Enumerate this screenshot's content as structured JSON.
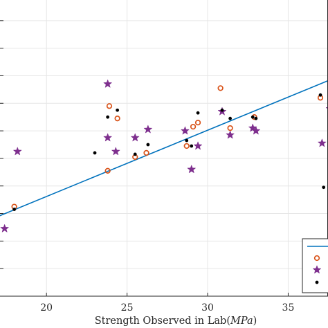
{
  "chart_data": {
    "type": "scatter",
    "title": "",
    "xlabel": "Strength Observed in Lab",
    "xlabel_unit": "MPa",
    "ylabel": "",
    "xlim": [
      16.6,
      37.6
    ],
    "ylim": [
      10.0,
      32.0
    ],
    "x_ticks": [
      20,
      25,
      30,
      35
    ],
    "x_tick_labels": [
      "20",
      "25",
      "30",
      "35"
    ],
    "y_ticks": [
      12,
      14,
      16,
      18,
      20,
      22,
      24,
      26,
      28,
      30
    ],
    "grid": true,
    "legend_placement": "bottom-right",
    "colors": {
      "line": "#0072BD",
      "circles": "#D95319",
      "stars": "#7E2F8E",
      "dots": "#000000",
      "grid": "#e6e6e6",
      "axes": "#262626"
    },
    "fit_line": {
      "name": "",
      "x": [
        16.6,
        37.6
      ],
      "y": [
        15.6,
        25.7
      ]
    },
    "series": [
      {
        "marker": "circle",
        "x": [
          18.0,
          23.8,
          24.4,
          23.9,
          25.5,
          26.2,
          28.7,
          29.1,
          29.4,
          30.8,
          31.4,
          32.9,
          37.0
        ],
        "y": [
          16.5,
          19.1,
          22.9,
          23.8,
          20.1,
          20.4,
          20.9,
          22.3,
          22.6,
          25.1,
          22.2,
          23.0,
          24.4
        ]
      },
      {
        "marker": "star",
        "x": [
          17.4,
          18.2,
          23.8,
          23.8,
          24.3,
          25.5,
          26.3,
          28.6,
          29.0,
          29.4,
          30.9,
          31.4,
          32.8,
          33.0,
          37.1,
          37.6
        ],
        "y": [
          14.9,
          20.5,
          25.4,
          21.5,
          20.5,
          21.5,
          22.1,
          22.0,
          19.2,
          20.9,
          23.4,
          21.7,
          22.2,
          22.0,
          21.1,
          23.6
        ]
      },
      {
        "marker": "dot",
        "x": [
          18.0,
          23.0,
          23.8,
          24.4,
          25.5,
          26.3,
          28.7,
          29.0,
          29.4,
          30.9,
          31.4,
          32.8,
          33.0,
          37.0,
          37.2
        ],
        "y": [
          16.3,
          20.4,
          23.0,
          23.5,
          20.3,
          21.0,
          21.3,
          20.9,
          23.3,
          23.5,
          22.9,
          23.0,
          22.9,
          24.6,
          17.9
        ]
      }
    ]
  }
}
